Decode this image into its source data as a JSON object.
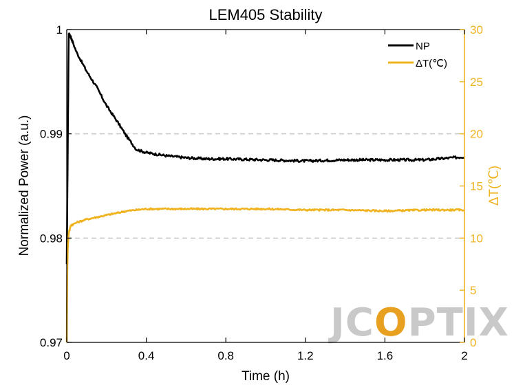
{
  "chart_data": {
    "type": "line",
    "title": "LEM405 Stability",
    "xlabel": "Time (h)",
    "ylabel": "Normalized Power (a.u.)",
    "y2label": "ΔT(℃)",
    "xlim": [
      0,
      2
    ],
    "ylim": [
      0.97,
      1
    ],
    "y2lim": [
      0,
      30
    ],
    "xticks": [
      "0",
      "0.4",
      "0.8",
      "1.2",
      "1.6",
      "2"
    ],
    "xtick_values": [
      0,
      0.4,
      0.8,
      1.2,
      1.6,
      2
    ],
    "yticks": [
      "0.97",
      "0.98",
      "0.99",
      "1"
    ],
    "ytick_values": [
      0.97,
      0.98,
      0.99,
      1
    ],
    "y2ticks": [
      "0",
      "5",
      "10",
      "15",
      "20",
      "25",
      "30"
    ],
    "y2tick_values": [
      0,
      5,
      10,
      15,
      20,
      25,
      30
    ],
    "grid": "dashed horizontal lines at 0.98 and 0.99",
    "legend_position": "top-right",
    "series": [
      {
        "name": "NP",
        "axis": "left",
        "color": "#000000",
        "x": [
          0,
          0.01,
          0.02,
          0.05,
          0.1,
          0.15,
          0.2,
          0.25,
          0.3,
          0.35,
          0.4,
          0.5,
          0.6,
          0.7,
          0.8,
          1.0,
          1.2,
          1.4,
          1.6,
          1.8,
          2.0
        ],
        "y": [
          0.9775,
          0.9996,
          0.9993,
          0.9978,
          0.996,
          0.9945,
          0.9927,
          0.9913,
          0.9898,
          0.9885,
          0.9882,
          0.9879,
          0.9877,
          0.9876,
          0.9876,
          0.9875,
          0.9874,
          0.9875,
          0.9875,
          0.9875,
          0.9878
        ]
      },
      {
        "name": "ΔT(℃)",
        "axis": "right",
        "color": "#f0b320",
        "x": [
          0,
          0.002,
          0.005,
          0.01,
          0.02,
          0.05,
          0.1,
          0.2,
          0.3,
          0.4,
          0.5,
          0.6,
          0.8,
          1.0,
          1.2,
          1.4,
          1.6,
          1.8,
          2.0
        ],
        "y": [
          0,
          6,
          9,
          10.5,
          11.2,
          11.5,
          11.8,
          12.2,
          12.6,
          12.8,
          12.8,
          12.8,
          12.8,
          12.8,
          12.7,
          12.7,
          12.6,
          12.7,
          12.7
        ]
      }
    ],
    "watermark": "JCOPTIX",
    "colors": {
      "np": "#000000",
      "dt": "#f0b320",
      "grid": "#c8c8c8",
      "watermark": "#c9c9c9",
      "watermark_o": "#e8a020"
    }
  }
}
